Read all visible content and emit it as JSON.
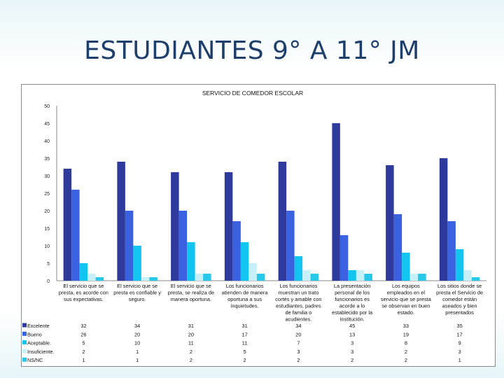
{
  "slide": {
    "title": "ESTUDIANTES 9° A  11° JM"
  },
  "colors": {
    "Excelente": "#2e3a9c",
    "Bueno": "#3a62e0",
    "Aceptable": "#12c4f0",
    "Insuficiente": "#c8f0f8",
    "NS/NC": "#28c8e8"
  },
  "chart_data": {
    "type": "bar",
    "title": "SERVICIO DE COMEDOR ESCOLAR",
    "ylim": [
      0,
      50
    ],
    "yticks": [
      "0",
      "5",
      "10",
      "15",
      "20",
      "25",
      "30",
      "35",
      "40",
      "45",
      "50"
    ],
    "categories": [
      [
        "El servicio que se",
        "presta, es acorde con",
        "sus expectativas."
      ],
      [
        "El servicio que se",
        "presta es confiable y",
        "seguro."
      ],
      [
        "El servicio que se",
        "presta, se realiza de",
        "manera oportuna."
      ],
      [
        "Los funcionarios",
        "atienden de manera",
        "oportuna a sus",
        "inquietudes."
      ],
      [
        "Los funcionarios",
        "muestran un trato",
        "cortés y amable con",
        "estudiantes, padres",
        "de familia o",
        "acudientes."
      ],
      [
        "La presentación",
        "personal de los",
        "funcionarios es",
        "acorde a lo",
        "establecido por la",
        "Institución."
      ],
      [
        "Los equipos",
        "empleados en el",
        "servicio que se presta",
        "se observan en buen",
        "estado."
      ],
      [
        "Los sitios donde se",
        "presta el Servicio de",
        "comedor están",
        "aseados y bien",
        "presentados"
      ]
    ],
    "series": [
      {
        "name": "Excelente",
        "values": [
          32,
          34,
          31,
          31,
          34,
          45,
          33,
          35
        ],
        "labels": [
          "32",
          "34",
          "31",
          "31",
          "34",
          "45",
          "33",
          "35"
        ]
      },
      {
        "name": "Bueno",
        "values": [
          26,
          20,
          20,
          17,
          20,
          13,
          19,
          17
        ],
        "labels": [
          "26",
          "20",
          "20",
          "17",
          "20",
          "13",
          "19",
          "17"
        ]
      },
      {
        "name": "Aceptable.",
        "values": [
          5,
          10,
          11,
          11,
          7,
          3,
          8,
          9
        ],
        "labels": [
          "5",
          "10",
          "11",
          "11",
          "7",
          "3",
          "8",
          "9"
        ]
      },
      {
        "name": "Insuficiente.",
        "values": [
          2,
          1,
          2,
          5,
          3,
          3,
          2,
          3
        ],
        "labels": [
          "2",
          "1",
          "2",
          "5",
          "3",
          "3",
          "2",
          "3"
        ]
      },
      {
        "name": "NS/NC",
        "values": [
          1,
          1,
          2,
          2,
          2,
          2,
          2,
          1
        ],
        "labels": [
          "1",
          "1",
          "2",
          "2",
          "2",
          "2",
          "2",
          "1"
        ]
      }
    ],
    "grid": false,
    "legend": "data table"
  }
}
